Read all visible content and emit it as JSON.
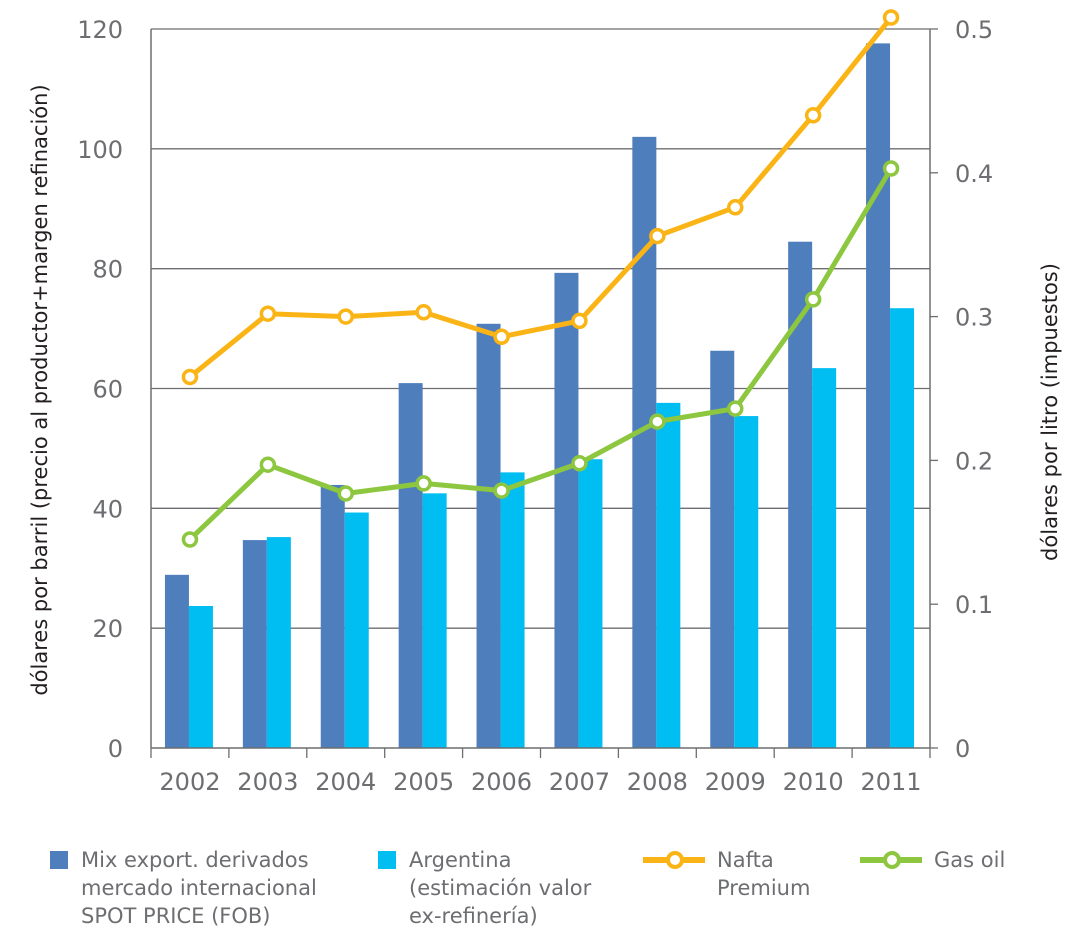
{
  "chart_data": {
    "type": "bar",
    "categories": [
      "2002",
      "2003",
      "2004",
      "2005",
      "2006",
      "2007",
      "2008",
      "2009",
      "2010",
      "2011"
    ],
    "y_left": {
      "label": "dólares por barril (precio al productor+margen refinación)",
      "lim": [
        0,
        120
      ],
      "ticks": [
        "0",
        "20",
        "40",
        "60",
        "80",
        "100",
        "120"
      ]
    },
    "y_right": {
      "label": "dólares por litro (impuestos)",
      "lim": [
        0,
        0.5
      ],
      "ticks": [
        "0",
        "0.1",
        "0.2",
        "0.3",
        "0.4",
        "0.5"
      ]
    },
    "grid": true,
    "legend_position": "bottom",
    "bar_series": [
      {
        "name": "Mix export. derivados\nmercado internacional\nSPOT PRICE  (FOB)",
        "color": "#4f7ebd",
        "axis": "left",
        "values": [
          28.9,
          34.7,
          43.9,
          60.9,
          70.8,
          79.3,
          102.0,
          66.3,
          84.5,
          117.6
        ]
      },
      {
        "name": "Argentina\n(estimación valor\nex-refinería)",
        "color": "#00bdf2",
        "axis": "left",
        "values": [
          23.7,
          35.2,
          39.3,
          42.5,
          46.0,
          48.2,
          57.6,
          55.4,
          63.4,
          73.4
        ]
      }
    ],
    "line_series": [
      {
        "name": "Nafta\nPremium",
        "color": "#fbb415",
        "axis": "right",
        "values": [
          0.258,
          0.302,
          0.3,
          0.303,
          0.286,
          0.297,
          0.356,
          0.376,
          0.44,
          0.508
        ]
      },
      {
        "name": "Gas oil",
        "color": "#8dc63f",
        "axis": "right",
        "values": [
          0.145,
          0.197,
          0.177,
          0.184,
          0.179,
          0.198,
          0.227,
          0.236,
          0.312,
          0.403
        ]
      }
    ]
  }
}
